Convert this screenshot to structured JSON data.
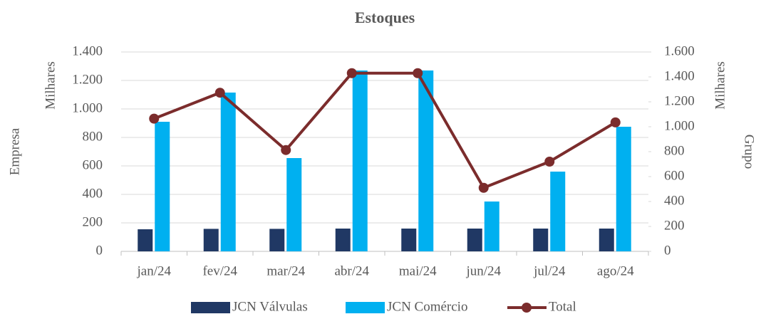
{
  "chart_data": {
    "type": "bar_line",
    "title": "Estoques",
    "y_label": "Empresa",
    "y_unit_label": "Milhares",
    "y2_label": "Grupo",
    "y2_unit_label": "Milhares",
    "categories": [
      "jan/24",
      "fev/24",
      "mar/24",
      "abr/24",
      "mai/24",
      "jun/24",
      "jul/24",
      "ago/24"
    ],
    "series": [
      {
        "name": "JCN Válvulas",
        "type": "bar",
        "color": "#203864",
        "values": [
          155,
          158,
          158,
          160,
          160,
          160,
          160,
          160
        ]
      },
      {
        "name": "JCN Comércio",
        "type": "bar",
        "color": "#00b0f0",
        "values": [
          910,
          1115,
          655,
          1270,
          1270,
          350,
          560,
          875
        ]
      },
      {
        "name": "Total",
        "type": "line",
        "axis": "y2",
        "color": "#7b2c2c",
        "values": [
          1065,
          1273,
          813,
          1430,
          1430,
          510,
          720,
          1035
        ]
      }
    ],
    "ylim": [
      0,
      1400
    ],
    "yticks": [
      0,
      200,
      400,
      600,
      800,
      {
        "value": 1000,
        "label": "1.000"
      },
      {
        "value": 1200,
        "label": "1.200"
      },
      {
        "value": 1400,
        "label": "1.400"
      }
    ],
    "y2lim": [
      0,
      1600
    ],
    "y2ticks": [
      0,
      200,
      400,
      600,
      800,
      {
        "value": 1000,
        "label": "1.000"
      },
      {
        "value": 1200,
        "label": "1.200"
      },
      {
        "value": 1400,
        "label": "1.400"
      },
      {
        "value": 1600,
        "label": "1.600"
      }
    ],
    "grid": true,
    "legend": "bottom"
  }
}
